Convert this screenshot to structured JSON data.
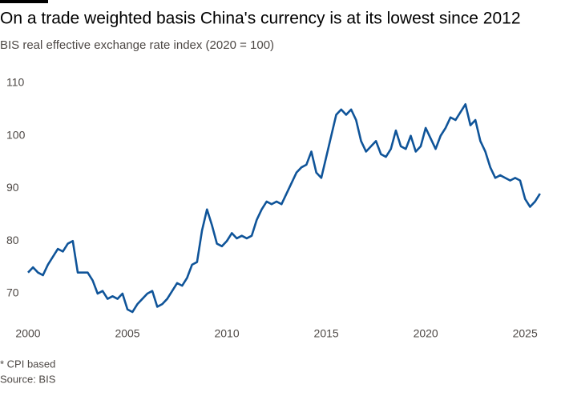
{
  "chart_data": {
    "type": "line",
    "title": "On a trade weighted basis China's currency is at its lowest since 2012",
    "subtitle": "BIS real effective exchange rate index (2020 = 100)",
    "footnote": "* CPI based",
    "source": "Source: BIS",
    "x": [
      2000,
      2000.25,
      2000.5,
      2000.75,
      2001,
      2001.25,
      2001.5,
      2001.75,
      2002,
      2002.25,
      2002.5,
      2002.75,
      2003,
      2003.25,
      2003.5,
      2003.75,
      2004,
      2004.25,
      2004.5,
      2004.75,
      2005,
      2005.25,
      2005.5,
      2005.75,
      2006,
      2006.25,
      2006.5,
      2006.75,
      2007,
      2007.25,
      2007.5,
      2007.75,
      2008,
      2008.25,
      2008.5,
      2008.75,
      2009,
      2009.25,
      2009.5,
      2009.75,
      2010,
      2010.25,
      2010.5,
      2010.75,
      2011,
      2011.25,
      2011.5,
      2011.75,
      2012,
      2012.25,
      2012.5,
      2012.75,
      2013,
      2013.25,
      2013.5,
      2013.75,
      2014,
      2014.25,
      2014.5,
      2014.75,
      2015,
      2015.25,
      2015.5,
      2015.75,
      2016,
      2016.25,
      2016.5,
      2016.75,
      2017,
      2017.25,
      2017.5,
      2017.75,
      2018,
      2018.25,
      2018.5,
      2018.75,
      2019,
      2019.25,
      2019.5,
      2019.75,
      2020,
      2020.25,
      2020.5,
      2020.75,
      2021,
      2021.25,
      2021.5,
      2021.75,
      2022,
      2022.25,
      2022.5,
      2022.75,
      2023,
      2023.25,
      2023.5,
      2023.75,
      2024,
      2024.25,
      2024.5,
      2024.75,
      2025,
      2025.25,
      2025.5,
      2025.75
    ],
    "series": [
      {
        "name": "BIS real effective exchange rate index",
        "color": "#0f5499",
        "values": [
          74,
          75,
          74,
          73.5,
          75.5,
          77,
          78.5,
          78,
          79.5,
          80,
          74,
          74,
          74,
          72.5,
          70,
          70.5,
          69,
          69.5,
          69,
          70,
          67,
          66.5,
          68,
          69,
          70,
          70.5,
          67.5,
          68,
          69,
          70.5,
          72,
          71.5,
          73,
          75.5,
          76,
          82,
          86,
          83,
          79.5,
          79,
          80,
          81.5,
          80.5,
          81,
          80.5,
          81,
          84,
          86,
          87.5,
          87,
          87.5,
          87,
          89,
          91,
          93,
          94,
          94.5,
          97,
          93,
          92,
          96,
          100,
          104,
          105,
          104,
          105,
          103,
          99,
          97,
          98,
          99,
          96.5,
          96,
          97.5,
          101,
          98,
          97.5,
          100,
          97,
          98,
          101.5,
          99.5,
          97.5,
          100,
          101.5,
          103.5,
          103,
          104.5,
          106,
          102,
          103,
          99,
          97,
          94,
          92,
          92.5,
          92,
          91.5,
          92,
          91.5,
          88,
          86.5,
          87.5,
          89
        ]
      }
    ],
    "xlim": [
      2000,
      2026
    ],
    "ylim": [
      64,
      112
    ],
    "xticks": [
      2000,
      2005,
      2010,
      2015,
      2020,
      2025
    ],
    "yticks": [
      70,
      80,
      90,
      100,
      110
    ],
    "grid": false
  }
}
